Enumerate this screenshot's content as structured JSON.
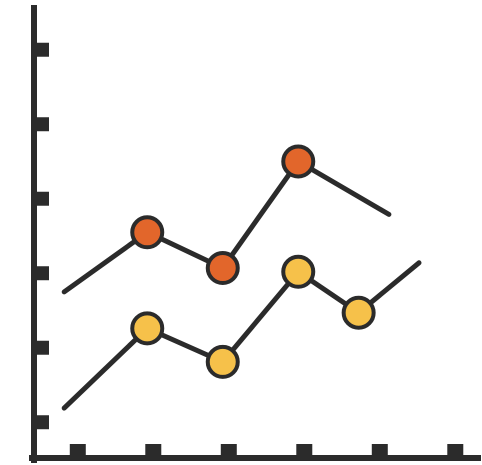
{
  "chart_data": {
    "type": "line",
    "xlim": [
      0,
      5
    ],
    "ylim": [
      0,
      5.1
    ],
    "series": [
      {
        "color": "#e2662b",
        "line_start": [
          0.4,
          2.23
        ],
        "points": [
          {
            "x": 1.5,
            "y": 3.03
          },
          {
            "x": 2.5,
            "y": 2.55
          },
          {
            "x": 3.5,
            "y": 3.98
          }
        ],
        "line_end": [
          4.7,
          3.27
        ]
      },
      {
        "color": "#f6c14a",
        "line_start": [
          0.4,
          0.67
        ],
        "points": [
          {
            "x": 1.5,
            "y": 1.74
          },
          {
            "x": 2.5,
            "y": 1.29
          },
          {
            "x": 3.5,
            "y": 2.5
          },
          {
            "x": 4.3,
            "y": 1.95
          }
        ],
        "line_end": [
          5.1,
          2.62
        ]
      }
    ],
    "grid": false,
    "legend": "none",
    "axis_color": "#2b2b2b"
  }
}
